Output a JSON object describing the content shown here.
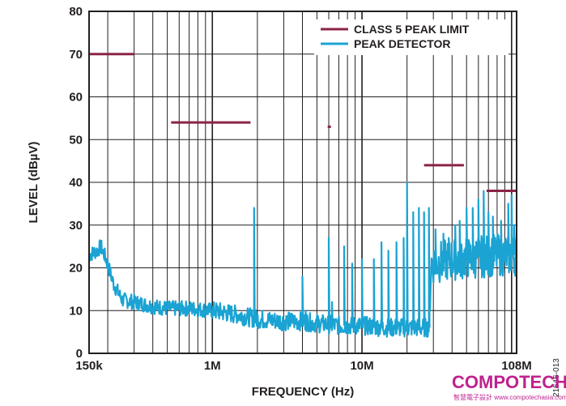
{
  "chart_data": {
    "type": "line",
    "x_scale": "log",
    "xlabel": "FREQUENCY (Hz)",
    "ylabel": "LEVEL (dBµV)",
    "xlim": [
      150000,
      108000000
    ],
    "ylim": [
      0,
      80
    ],
    "x_ticks": [
      {
        "value": 150000,
        "label": "150k"
      },
      {
        "value": 1000000,
        "label": "1M"
      },
      {
        "value": 10000000,
        "label": "10M"
      },
      {
        "value": 108000000,
        "label": "108M"
      }
    ],
    "y_ticks": [
      0,
      10,
      20,
      30,
      40,
      50,
      60,
      70,
      80
    ],
    "grid": true,
    "legend_position": "top-right",
    "series": [
      {
        "name": "CLASS 5 PEAK LIMIT",
        "color": "#8b2346",
        "segments": [
          {
            "x": [
              150000,
              300000
            ],
            "y": 70
          },
          {
            "x": [
              530000,
              1800000
            ],
            "y": 54
          },
          {
            "x": [
              5900000,
              6200000
            ],
            "y": 53
          },
          {
            "x": [
              26000000,
              48000000
            ],
            "y": 44
          },
          {
            "x": [
              68000000,
              108000000
            ],
            "y": 38
          }
        ]
      },
      {
        "name": "PEAK DETECTOR",
        "color": "#1aa3d3",
        "noise_floor": [
          [
            150000,
            23
          ],
          [
            170000,
            24
          ],
          [
            180000,
            25
          ],
          [
            195000,
            22
          ],
          [
            220000,
            16
          ],
          [
            250000,
            12.5
          ],
          [
            300000,
            12
          ],
          [
            400000,
            11
          ],
          [
            500000,
            10.5
          ],
          [
            700000,
            10.5
          ],
          [
            1000000,
            10
          ],
          [
            1500000,
            9
          ],
          [
            2000000,
            8
          ],
          [
            3000000,
            7.5
          ],
          [
            4000000,
            7.5
          ],
          [
            5000000,
            7
          ],
          [
            7000000,
            6.5
          ],
          [
            10000000,
            6.5
          ],
          [
            15000000,
            6
          ],
          [
            20000000,
            6
          ],
          [
            28000000,
            6
          ],
          [
            29000000,
            21
          ],
          [
            40000000,
            22
          ],
          [
            60000000,
            22.5
          ],
          [
            80000000,
            23
          ],
          [
            108000000,
            23
          ]
        ],
        "peaks": [
          [
            1900000,
            34
          ],
          [
            4000000,
            18
          ],
          [
            4200000,
            10
          ],
          [
            6000000,
            27
          ],
          [
            6300000,
            12
          ],
          [
            7600000,
            25
          ],
          [
            8600000,
            21
          ],
          [
            10000000,
            22
          ],
          [
            12000000,
            22
          ],
          [
            13500000,
            26
          ],
          [
            15000000,
            24
          ],
          [
            17000000,
            26
          ],
          [
            19000000,
            27
          ],
          [
            20000000,
            40
          ],
          [
            22000000,
            33
          ],
          [
            24000000,
            34
          ],
          [
            26000000,
            33
          ],
          [
            28000000,
            34
          ],
          [
            31000000,
            29
          ],
          [
            35000000,
            28
          ],
          [
            38000000,
            27
          ],
          [
            42000000,
            30
          ],
          [
            45000000,
            31
          ],
          [
            50000000,
            34
          ],
          [
            55000000,
            34
          ],
          [
            60000000,
            36
          ],
          [
            65000000,
            38
          ],
          [
            70000000,
            33
          ],
          [
            75000000,
            32
          ],
          [
            85000000,
            31
          ],
          [
            95000000,
            35
          ],
          [
            100000000,
            37
          ],
          [
            104000000,
            30
          ]
        ]
      }
    ]
  },
  "figure_id": "21646-013",
  "watermark": {
    "main": "COMPOTECH",
    "sub": "智慧電子設計 www.compotechasia.com",
    "color": "#c0218f"
  }
}
